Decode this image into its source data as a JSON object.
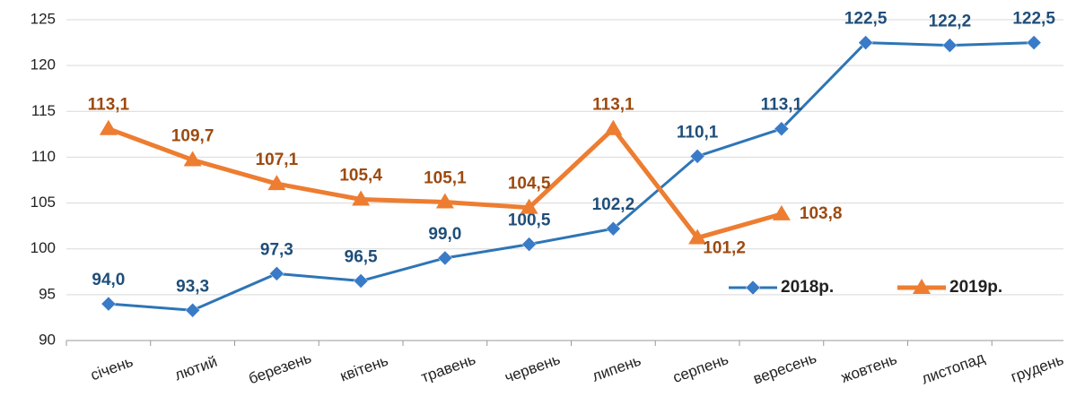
{
  "chart_data": {
    "type": "line",
    "categories": [
      "січень",
      "лютий",
      "березень",
      "квітень",
      "травень",
      "червень",
      "липень",
      "серпень",
      "вересень",
      "жовтень",
      "листопад",
      "грудень"
    ],
    "series": [
      {
        "name": "2018р.",
        "color": "#2e75b6",
        "marker": "diamond",
        "values": [
          94.0,
          93.3,
          97.3,
          96.5,
          99.0,
          100.5,
          102.2,
          110.1,
          113.1,
          122.5,
          122.2,
          122.5
        ],
        "value_labels": [
          "94,0",
          "93,3",
          "97,3",
          "96,5",
          "99,0",
          "100,5",
          "102,2",
          "110,1",
          "113,1",
          "122,5",
          "122,2",
          "122,5"
        ]
      },
      {
        "name": "2019р.",
        "color": "#ed7d31",
        "marker": "triangle",
        "values": [
          113.1,
          109.7,
          107.1,
          105.4,
          105.1,
          104.5,
          113.1,
          101.2,
          103.8,
          null,
          null,
          null
        ],
        "value_labels": [
          "113,1",
          "109,7",
          "107,1",
          "105,4",
          "105,1",
          "104,5",
          "113,1",
          "101,2",
          "103,8",
          null,
          null,
          null
        ]
      }
    ],
    "ylim": [
      90,
      125
    ],
    "yticks": [
      90,
      95,
      100,
      105,
      110,
      115,
      120,
      125
    ],
    "grid": true,
    "legend": "lower right"
  }
}
